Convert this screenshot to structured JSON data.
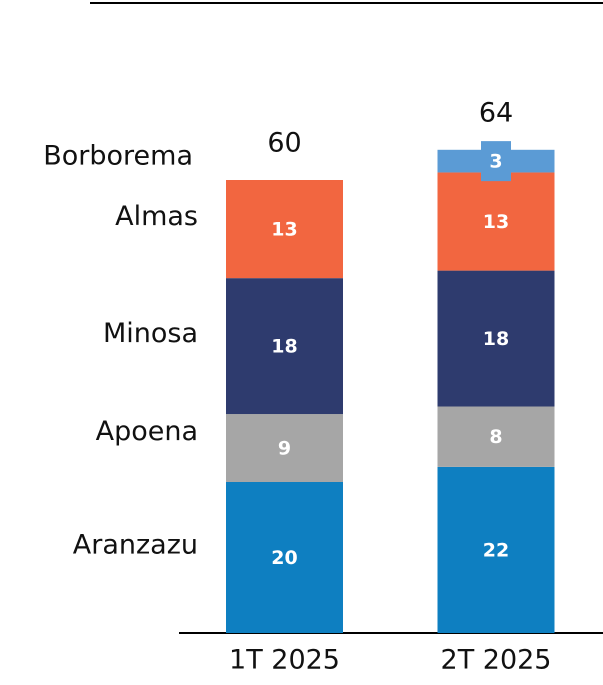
{
  "chart_data": {
    "type": "stacked_bar",
    "categories": [
      "1T 2025",
      "2T 2025"
    ],
    "series": [
      {
        "name": "Aranzazu",
        "color": "#0e7fc1",
        "values": [
          20,
          22
        ]
      },
      {
        "name": "Apoena",
        "color": "#a6a6a6",
        "values": [
          9,
          8
        ]
      },
      {
        "name": "Minosa",
        "color": "#2e3b6e",
        "values": [
          18,
          18
        ]
      },
      {
        "name": "Almas",
        "color": "#f26640",
        "values": [
          13,
          13
        ]
      },
      {
        "name": "Borborema",
        "color": "#5b9bd5",
        "values": [
          null,
          3
        ]
      }
    ],
    "totals": [
      60,
      64
    ]
  }
}
